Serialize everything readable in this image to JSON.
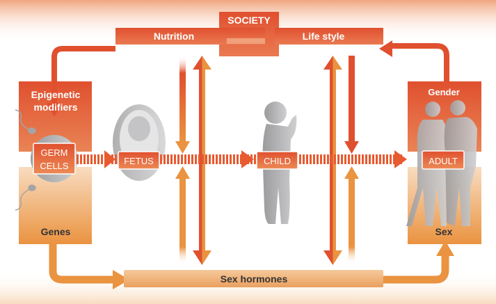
{
  "labels": {
    "society": "SOCIETY",
    "nutrition": "Nutrition",
    "lifestyle": "Life style",
    "epigenetic_line1": "Epigenetic",
    "epigenetic_line2": "modifiers",
    "genes": "Genes",
    "germ_line1": "GERM",
    "germ_line2": "CELLS",
    "fetus": "FETUS",
    "child": "CHILD",
    "adult": "ADULT",
    "gender": "Gender",
    "sex": "Sex",
    "sex_hormones": "Sex hormones"
  },
  "colors": {
    "red": "#e0502f",
    "orange": "#ea9340",
    "light_orange": "#f5c99a",
    "gray": "#a9a9ab"
  }
}
